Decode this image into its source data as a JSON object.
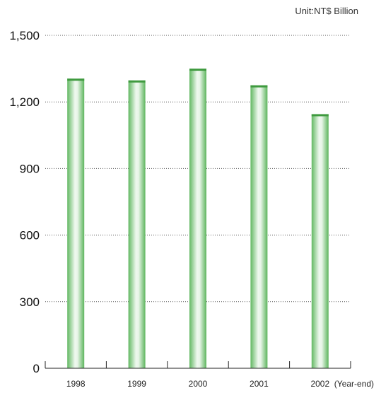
{
  "chart_data": {
    "type": "bar",
    "unit_label": "Unit:NT$ Billion",
    "categories": [
      "1998",
      "1999",
      "2000",
      "2001",
      "2002"
    ],
    "x_suffix": "(Year-end)",
    "values": [
      1305,
      1297,
      1350,
      1275,
      1145
    ],
    "ylim": [
      0,
      1500
    ],
    "yticks": [
      0,
      300,
      600,
      900,
      1200,
      1500
    ],
    "ytick_labels": [
      "0",
      "300",
      "600",
      "900",
      "1,200",
      "1,500"
    ],
    "grid": true,
    "bar_color": "#7cc47c",
    "bar_top_color": "#3f9a3f"
  }
}
